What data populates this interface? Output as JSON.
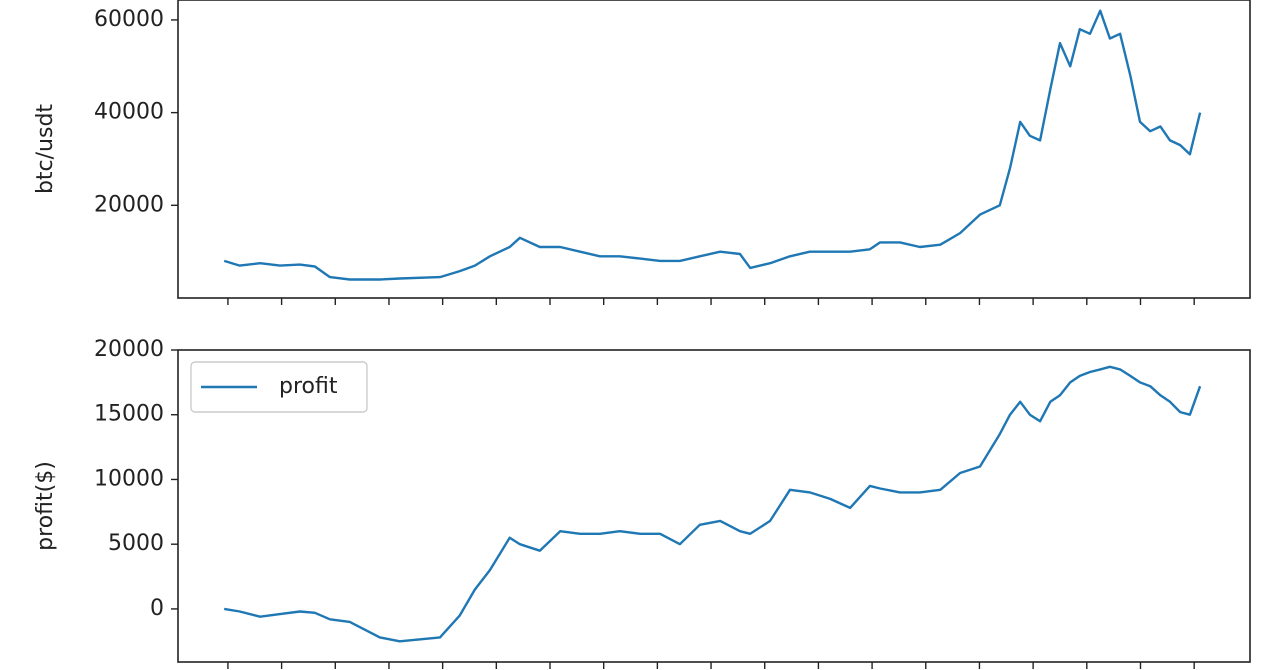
{
  "chart_data": [
    {
      "type": "line",
      "ylabel": "btc/usdt",
      "color": "#1f77b4",
      "x": [
        -0.07,
        0.22,
        0.6,
        0.97,
        1.34,
        1.62,
        1.9,
        2.27,
        2.83,
        3.2,
        3.95,
        4.32,
        4.6,
        4.88,
        5.25,
        5.44,
        5.81,
        6.19,
        6.56,
        6.93,
        7.3,
        7.68,
        8.05,
        8.42,
        8.79,
        9.17,
        9.54,
        9.73,
        10.1,
        10.47,
        10.84,
        11.22,
        11.59,
        11.96,
        12.15,
        12.52,
        12.89,
        13.27,
        13.64,
        14.01,
        14.38,
        14.57,
        14.76,
        14.94,
        15.13,
        15.32,
        15.5,
        15.69,
        15.87,
        16.06,
        16.25,
        16.43,
        16.62,
        16.81,
        16.99,
        17.18,
        17.37,
        17.55,
        17.74,
        17.92,
        18.11
      ],
      "values": [
        8000,
        7000,
        7500,
        7000,
        7200,
        6800,
        4500,
        4000,
        4000,
        4200,
        4500,
        5800,
        7000,
        9000,
        11000,
        13000,
        11000,
        11000,
        10000,
        9000,
        9000,
        8500,
        8000,
        8000,
        9000,
        10000,
        9500,
        6500,
        7500,
        9000,
        10000,
        10000,
        10000,
        10500,
        12000,
        12000,
        11000,
        11500,
        14000,
        18000,
        20000,
        28000,
        38000,
        35000,
        34000,
        45000,
        55000,
        50000,
        58000,
        57000,
        62000,
        56000,
        57000,
        48000,
        38000,
        36000,
        37000,
        34000,
        33000,
        31000,
        40000
      ],
      "xlim": [
        -0.93,
        19.04
      ],
      "xticks": [
        0,
        1,
        2,
        3,
        4,
        5,
        6,
        7,
        8,
        9,
        10,
        11,
        12,
        13,
        14,
        15,
        16,
        17,
        18
      ],
      "ylim": [
        0,
        64300
      ],
      "yticks": [
        20000,
        40000,
        60000
      ]
    },
    {
      "type": "line",
      "ylabel": "profit($)",
      "legend": "upper left",
      "x": [
        -0.07,
        0.22,
        0.6,
        0.97,
        1.34,
        1.62,
        1.9,
        2.27,
        2.83,
        3.2,
        3.95,
        4.32,
        4.6,
        4.88,
        5.25,
        5.44,
        5.81,
        6.19,
        6.56,
        6.93,
        7.3,
        7.68,
        8.05,
        8.42,
        8.79,
        9.17,
        9.54,
        9.73,
        10.1,
        10.47,
        10.84,
        11.22,
        11.59,
        11.96,
        12.15,
        12.52,
        12.89,
        13.27,
        13.64,
        14.01,
        14.38,
        14.57,
        14.76,
        14.94,
        15.13,
        15.32,
        15.5,
        15.69,
        15.87,
        16.06,
        16.25,
        16.43,
        16.62,
        16.81,
        16.99,
        17.18,
        17.37,
        17.55,
        17.74,
        17.92,
        18.11
      ],
      "series": [
        {
          "name": "profit",
          "color": "#1f77b4",
          "values": [
            0,
            -200,
            -600,
            -400,
            -200,
            -300,
            -800,
            -1000,
            -2200,
            -2500,
            -2200,
            -500,
            1500,
            3000,
            5500,
            5000,
            4500,
            6000,
            5800,
            5800,
            6000,
            5800,
            5800,
            5000,
            6500,
            6800,
            6000,
            5800,
            6800,
            9200,
            9000,
            8500,
            7800,
            9500,
            9300,
            9000,
            9000,
            9200,
            10500,
            11000,
            13500,
            15000,
            16000,
            15000,
            14500,
            16000,
            16500,
            17500,
            18000,
            18300,
            18500,
            18700,
            18500,
            18000,
            17500,
            17200,
            16500,
            16000,
            15200,
            15000,
            17200
          ]
        }
      ],
      "xlim": [
        -0.93,
        19.04
      ],
      "xticks": [
        0,
        1,
        2,
        3,
        4,
        5,
        6,
        7,
        8,
        9,
        10,
        11,
        12,
        13,
        14,
        15,
        16,
        17,
        18
      ],
      "ylim": [
        -4100,
        20000
      ],
      "yticks": [
        0,
        5000,
        10000,
        15000,
        20000
      ]
    }
  ]
}
